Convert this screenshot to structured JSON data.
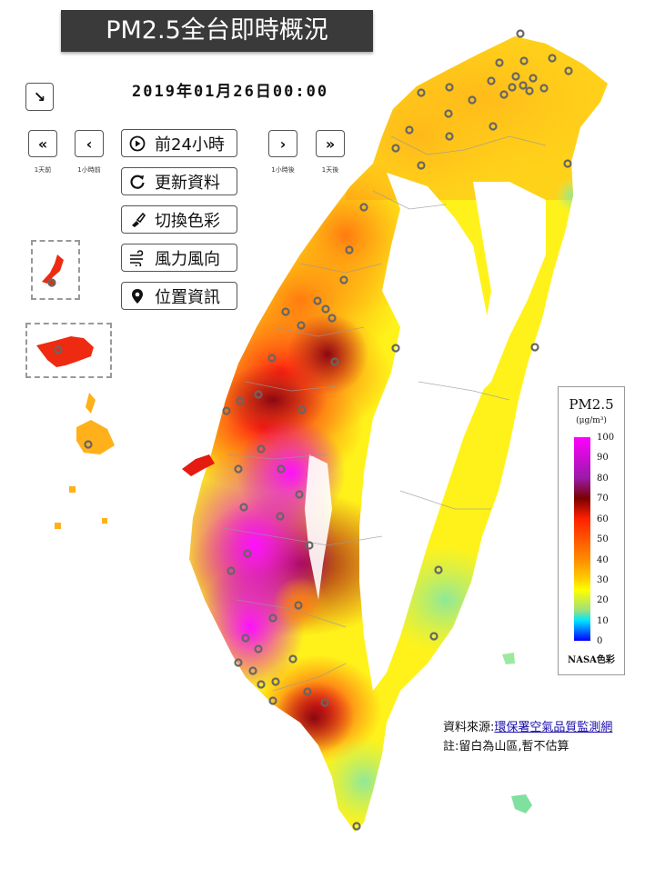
{
  "title": "PM2.5全台即時概況",
  "datetime": "2019年01月26日00:00",
  "nav": [
    {
      "symbol": "«",
      "caption": "1天前"
    },
    {
      "symbol": "‹",
      "caption": "1小時前"
    },
    {
      "symbol": "›",
      "caption": "1小時後"
    },
    {
      "symbol": "»",
      "caption": "1天後"
    }
  ],
  "actions": [
    {
      "label": "前24小時",
      "icon": "play-circle-icon",
      "glyph": "▶"
    },
    {
      "label": "更新資料",
      "icon": "refresh-icon",
      "glyph": "↻"
    },
    {
      "label": "切換色彩",
      "icon": "paint-brush-icon",
      "glyph": "✎"
    },
    {
      "label": "風力風向",
      "icon": "wind-icon",
      "glyph": "≋"
    },
    {
      "label": "位置資訊",
      "icon": "location-pin-icon",
      "glyph": "⚲"
    }
  ],
  "collapse_glyph": "↘",
  "legend": {
    "title": "PM2.5",
    "unit": "(μg/m³)",
    "ticks": [
      "100",
      "90",
      "80",
      "70",
      "60",
      "50",
      "40",
      "30",
      "20",
      "10",
      "0"
    ],
    "footer": "NASA色彩"
  },
  "source_label": "資料來源:",
  "source_link": "環保署空氣品質監測網",
  "note": "註:留白為山區,暫不估算",
  "colors": {
    "magenta": "#e60ae6",
    "purple": "#a11ab0",
    "darkred": "#8e0a12",
    "red": "#ee1a10",
    "orange": "#ff7d10",
    "amber": "#ffb01a",
    "yellow": "#fff21a",
    "lightgreen": "#a8ec80",
    "cyan": "#7fe0c0"
  }
}
